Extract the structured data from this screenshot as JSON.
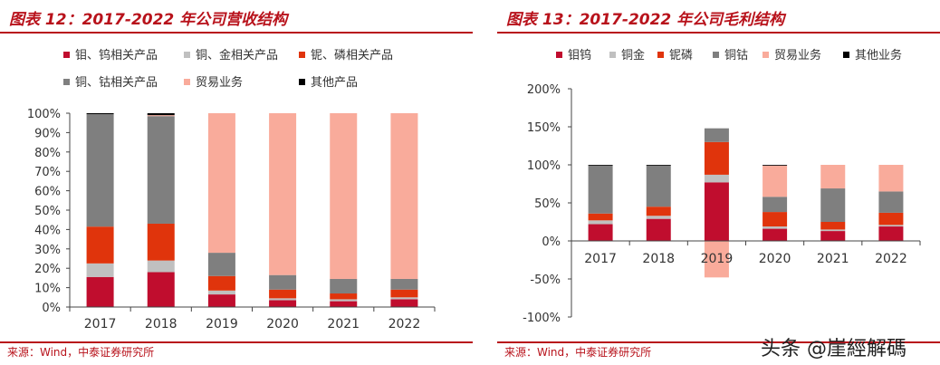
{
  "left": {
    "title": "图表 12：2017-2022 年公司营收结构",
    "source": "来源：Wind，中泰证券研究所"
  },
  "right": {
    "title": "图表 13：2017-2022 年公司毛利结构",
    "source": "来源：Wind，中泰证券研究所"
  },
  "watermark": "头条 @崖經解碼",
  "colors": {
    "series1": "#c00d2e",
    "series2": "#c0c0c0",
    "series3": "#e0340c",
    "series4": "#7f7f7f",
    "series5": "#f9ab9b",
    "series6": "#000000",
    "accent": "#b8121b"
  },
  "chart_data": [
    {
      "type": "bar",
      "stacked": true,
      "categories": [
        "2017",
        "2018",
        "2019",
        "2020",
        "2021",
        "2022"
      ],
      "ylim": [
        0,
        100
      ],
      "ytick_labels": [
        "0%",
        "10%",
        "20%",
        "30%",
        "40%",
        "50%",
        "60%",
        "70%",
        "80%",
        "90%",
        "100%"
      ],
      "legend_position": "top",
      "series": [
        {
          "name": "钼、钨相关产品",
          "values": [
            15.5,
            18,
            6.5,
            3.5,
            3,
            4
          ]
        },
        {
          "name": "铜、金相关产品",
          "values": [
            7,
            6,
            2,
            1,
            1,
            1
          ]
        },
        {
          "name": "铌、磷相关产品",
          "values": [
            19,
            19,
            7.5,
            4.5,
            3,
            4
          ]
        },
        {
          "name": "铜、钴相关产品",
          "values": [
            58,
            55.5,
            12,
            7.5,
            7.5,
            5.5
          ]
        },
        {
          "name": "贸易业务",
          "values": [
            0,
            0.5,
            72,
            83.5,
            85.5,
            85.5
          ]
        },
        {
          "name": "其他产品",
          "values": [
            0.5,
            1,
            0,
            0,
            0,
            0
          ]
        }
      ]
    },
    {
      "type": "bar",
      "stacked": true,
      "categories": [
        "2017",
        "2018",
        "2019",
        "2020",
        "2021",
        "2022"
      ],
      "ylim": [
        -100,
        200
      ],
      "ytick_labels": [
        "-100%",
        "-50%",
        "0%",
        "50%",
        "100%",
        "150%",
        "200%"
      ],
      "legend_position": "top",
      "series": [
        {
          "name": "钼钨",
          "values": [
            22,
            29,
            77,
            16,
            13,
            19
          ]
        },
        {
          "name": "铜金",
          "values": [
            5,
            4,
            10,
            3,
            2,
            2
          ]
        },
        {
          "name": "铌磷",
          "values": [
            9,
            12,
            43,
            19,
            10,
            16
          ]
        },
        {
          "name": "铜钴",
          "values": [
            63,
            54,
            18,
            20,
            44,
            28
          ]
        },
        {
          "name": "贸易业务",
          "values": [
            0,
            0,
            -48,
            41,
            31,
            35
          ]
        },
        {
          "name": "其他业务",
          "values": [
            1,
            1,
            0,
            1,
            0,
            0
          ]
        }
      ]
    }
  ]
}
